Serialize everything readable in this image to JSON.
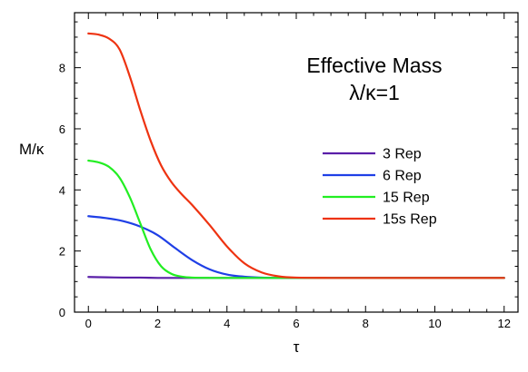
{
  "chart_data": {
    "type": "line",
    "title": "Effective Mass",
    "subtitle": "λ/κ=1",
    "xlabel": "τ",
    "ylabel": "M/κ",
    "xlim": [
      -0.4,
      12.4
    ],
    "ylim": [
      0,
      9.8
    ],
    "xticks": [
      0,
      2,
      4,
      6,
      8,
      10,
      12
    ],
    "yticks": [
      0,
      2,
      4,
      6,
      8
    ],
    "grid": false,
    "legend_position": "right-middle",
    "series": [
      {
        "name": "3 Rep",
        "color": "#5a1fa8",
        "x": [
          0,
          0.5,
          1,
          1.5,
          2,
          2.5,
          3,
          3.5,
          4,
          5,
          6,
          7,
          8,
          10,
          12
        ],
        "y": [
          1.15,
          1.14,
          1.13,
          1.13,
          1.12,
          1.12,
          1.12,
          1.12,
          1.12,
          1.12,
          1.12,
          1.12,
          1.12,
          1.12,
          1.12
        ]
      },
      {
        "name": "6 Rep",
        "color": "#1f3fe6",
        "x": [
          0,
          0.5,
          1,
          1.5,
          2,
          2.5,
          3,
          3.5,
          4,
          4.5,
          5,
          5.5,
          6,
          7,
          8,
          10,
          12
        ],
        "y": [
          3.14,
          3.08,
          2.98,
          2.8,
          2.52,
          2.1,
          1.7,
          1.4,
          1.23,
          1.16,
          1.13,
          1.12,
          1.12,
          1.12,
          1.12,
          1.12,
          1.12
        ]
      },
      {
        "name": "15 Rep",
        "color": "#22ee22",
        "x": [
          0,
          0.3,
          0.6,
          0.9,
          1.2,
          1.5,
          1.8,
          2.1,
          2.4,
          2.7,
          3,
          3.5,
          4,
          5,
          6,
          8,
          10,
          12
        ],
        "y": [
          4.96,
          4.9,
          4.75,
          4.4,
          3.75,
          2.9,
          2.05,
          1.5,
          1.25,
          1.16,
          1.13,
          1.12,
          1.12,
          1.12,
          1.12,
          1.12,
          1.12,
          1.12
        ]
      },
      {
        "name": "15s Rep",
        "color": "#ee3311",
        "x": [
          0,
          0.3,
          0.6,
          0.9,
          1.2,
          1.5,
          1.8,
          2.1,
          2.4,
          2.7,
          3,
          3.5,
          4,
          4.5,
          5,
          5.5,
          6,
          7,
          8,
          10,
          12
        ],
        "y": [
          9.12,
          9.08,
          8.95,
          8.6,
          7.7,
          6.6,
          5.6,
          4.8,
          4.25,
          3.85,
          3.5,
          2.85,
          2.15,
          1.6,
          1.3,
          1.17,
          1.13,
          1.12,
          1.12,
          1.12,
          1.12
        ]
      }
    ]
  }
}
